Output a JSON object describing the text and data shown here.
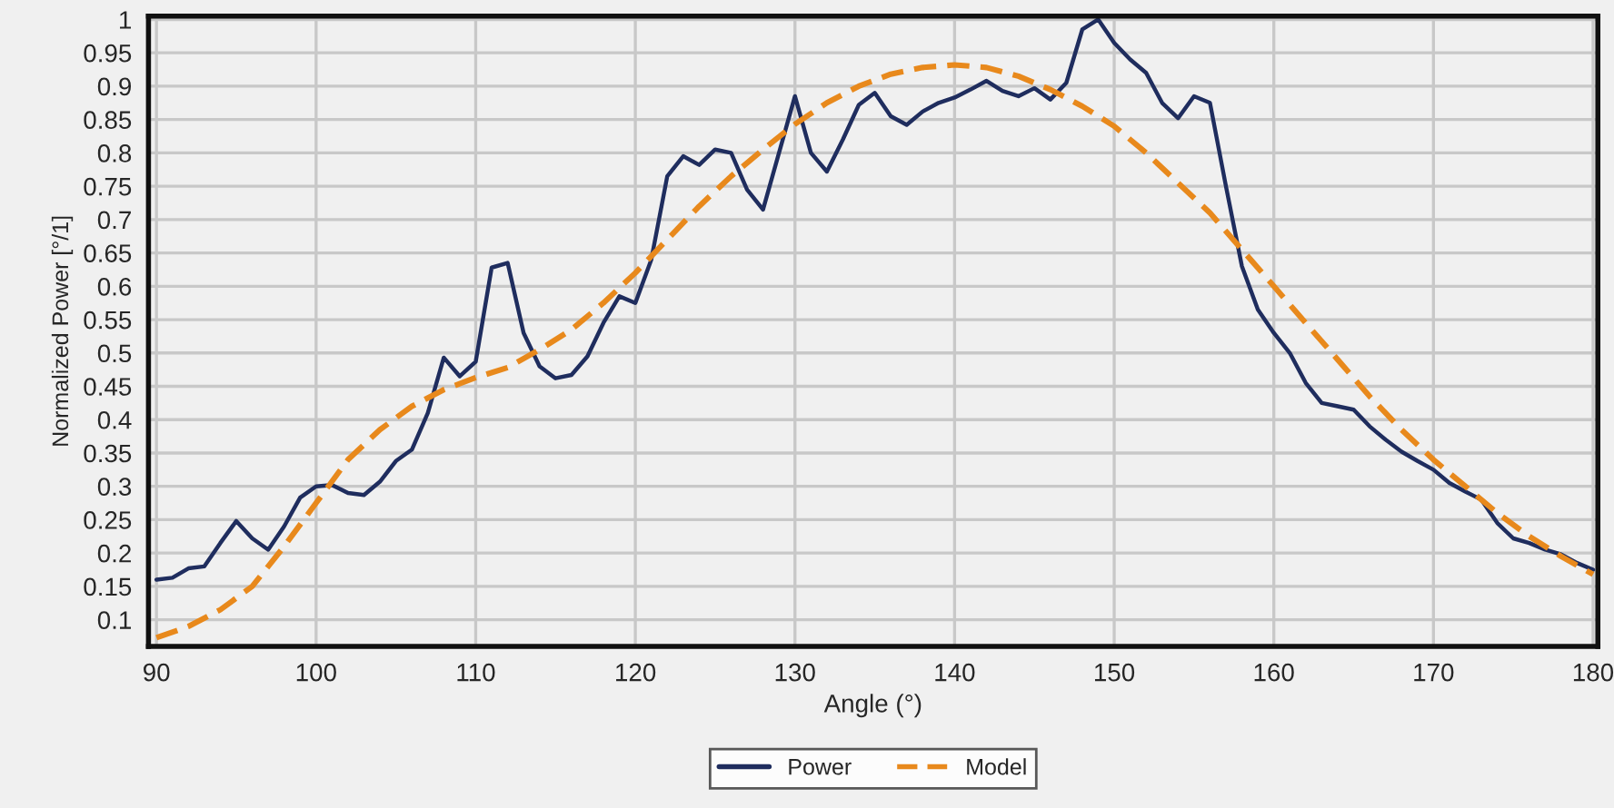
{
  "chart_data": {
    "type": "line",
    "xlabel": "Angle (°)",
    "ylabel": "Normalized Power [°/1]",
    "xlim": [
      89.5,
      180.3
    ],
    "ylim": [
      0.06,
      1.005
    ],
    "xticks": [
      90,
      100,
      110,
      120,
      130,
      140,
      150,
      160,
      170,
      180
    ],
    "yticks": [
      0.1,
      0.15,
      0.2,
      0.25,
      0.3,
      0.35,
      0.4,
      0.45,
      0.5,
      0.55,
      0.6,
      0.65,
      0.7,
      0.75,
      0.8,
      0.85,
      0.9,
      0.95,
      1
    ],
    "grid": true,
    "legend": "bottom",
    "series": [
      {
        "name": "Power",
        "color": "#1f2d5e",
        "line_style": "solid",
        "x": [
          90,
          91,
          92,
          93,
          94,
          95,
          96,
          97,
          98,
          99,
          100,
          101,
          102,
          103,
          104,
          105,
          106,
          107,
          108,
          109,
          110,
          111,
          112,
          113,
          114,
          115,
          116,
          117,
          118,
          119,
          120,
          121,
          122,
          123,
          124,
          125,
          126,
          127,
          128,
          129,
          130,
          131,
          132,
          133,
          134,
          135,
          136,
          137,
          138,
          139,
          140,
          141,
          142,
          143,
          144,
          145,
          146,
          147,
          148,
          149,
          150,
          151,
          152,
          153,
          154,
          155,
          156,
          157,
          158,
          159,
          160,
          161,
          162,
          163,
          164,
          165,
          166,
          167,
          168,
          169,
          170,
          171,
          172,
          173,
          174,
          175,
          176,
          177,
          178,
          179,
          180
        ],
        "values": [
          0.16,
          0.163,
          0.177,
          0.18,
          0.215,
          0.248,
          0.222,
          0.205,
          0.24,
          0.283,
          0.3,
          0.302,
          0.29,
          0.287,
          0.307,
          0.338,
          0.355,
          0.41,
          0.493,
          0.465,
          0.487,
          0.628,
          0.635,
          0.53,
          0.48,
          0.462,
          0.467,
          0.495,
          0.545,
          0.585,
          0.575,
          0.64,
          0.765,
          0.795,
          0.782,
          0.805,
          0.8,
          0.745,
          0.715,
          0.8,
          0.885,
          0.8,
          0.772,
          0.82,
          0.872,
          0.89,
          0.855,
          0.842,
          0.862,
          0.875,
          0.883,
          0.895,
          0.908,
          0.893,
          0.885,
          0.897,
          0.88,
          0.905,
          0.985,
          1.0,
          0.965,
          0.94,
          0.92,
          0.875,
          0.852,
          0.885,
          0.875,
          0.75,
          0.63,
          0.565,
          0.53,
          0.5,
          0.455,
          0.425,
          0.42,
          0.415,
          0.39,
          0.37,
          0.352,
          0.338,
          0.325,
          0.305,
          0.292,
          0.28,
          0.245,
          0.222,
          0.215,
          0.205,
          0.198,
          0.185,
          0.175
        ]
      },
      {
        "name": "Model",
        "color": "#e8891c",
        "line_style": "dashed",
        "x": [
          90,
          92,
          94,
          96,
          98,
          100,
          102,
          104,
          106,
          108,
          110,
          112,
          114,
          116,
          118,
          120,
          122,
          124,
          126,
          128,
          130,
          132,
          134,
          136,
          138,
          140,
          142,
          144,
          146,
          148,
          150,
          152,
          154,
          156,
          158,
          160,
          162,
          164,
          166,
          168,
          170,
          172,
          174,
          176,
          178,
          180
        ],
        "values": [
          0.073,
          0.09,
          0.115,
          0.15,
          0.21,
          0.275,
          0.34,
          0.385,
          0.42,
          0.445,
          0.463,
          0.478,
          0.505,
          0.535,
          0.575,
          0.62,
          0.67,
          0.72,
          0.765,
          0.805,
          0.843,
          0.875,
          0.9,
          0.918,
          0.928,
          0.932,
          0.928,
          0.915,
          0.895,
          0.87,
          0.84,
          0.8,
          0.755,
          0.71,
          0.655,
          0.6,
          0.545,
          0.49,
          0.435,
          0.385,
          0.34,
          0.3,
          0.26,
          0.225,
          0.195,
          0.168
        ]
      }
    ]
  }
}
